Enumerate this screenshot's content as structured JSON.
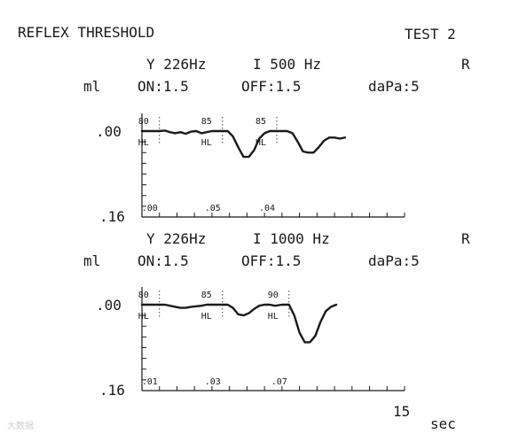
{
  "header": {
    "title": "REFLEX THRESHOLD",
    "test": "TEST 2"
  },
  "time_axis": {
    "max_label": "15",
    "unit": "sec"
  },
  "watermark": "大数据",
  "chart_data": [
    {
      "type": "line",
      "probe_label": "Y 226Hz",
      "stim_label": "I 500 Hz",
      "ear": "R",
      "ylabel": "ml",
      "on_label": "ON:1.5",
      "off_label": "OFF:1.5",
      "pressure_label": "daPa:5",
      "ytick_labels": [
        ".00",
        ".16"
      ],
      "ylim": [
        0.16,
        0.0
      ],
      "xlim": [
        0,
        15
      ],
      "stimuli": [
        {
          "level": "80",
          "unit": "HL",
          "at": 1.0,
          "amplitude": ".00"
        },
        {
          "level": "85",
          "unit": "HL",
          "at": 4.6,
          "amplitude": ".05"
        },
        {
          "level": "85",
          "unit": "HL",
          "at": 7.7,
          "amplitude": ".04"
        }
      ],
      "x": [
        0,
        1.0,
        1.3,
        1.6,
        1.9,
        2.2,
        2.5,
        2.8,
        3.1,
        3.4,
        3.7,
        4.0,
        4.3,
        4.6,
        4.9,
        5.2,
        5.5,
        5.8,
        6.1,
        6.4,
        6.7,
        7.0,
        7.3,
        7.7,
        8.0,
        8.3,
        8.6,
        8.9,
        9.2,
        9.5,
        9.8,
        10.1,
        10.4,
        10.7,
        11.0,
        11.3,
        11.6
      ],
      "y": [
        0.0,
        0.0,
        -0.001,
        0.002,
        0.004,
        0.002,
        0.005,
        0.001,
        0.0,
        0.004,
        0.002,
        0.0,
        0.0,
        0.0,
        0.0,
        0.01,
        0.03,
        0.048,
        0.048,
        0.036,
        0.014,
        0.004,
        0.0,
        0.0,
        0.0,
        0.0,
        0.004,
        0.02,
        0.038,
        0.04,
        0.04,
        0.03,
        0.018,
        0.012,
        0.012,
        0.014,
        0.012
      ]
    },
    {
      "type": "line",
      "probe_label": "Y 226Hz",
      "stim_label": "I 1000 Hz",
      "ear": "R",
      "ylabel": "ml",
      "on_label": "ON:1.5",
      "off_label": "OFF:1.5",
      "pressure_label": "daPa:5",
      "ytick_labels": [
        ".00",
        ".16"
      ],
      "ylim": [
        0.16,
        0.0
      ],
      "xlim": [
        0,
        15
      ],
      "stimuli": [
        {
          "level": "80",
          "unit": "HL",
          "at": 1.0,
          "amplitude": ".01"
        },
        {
          "level": "85",
          "unit": "HL",
          "at": 4.6,
          "amplitude": ".03"
        },
        {
          "level": "90",
          "unit": "HL",
          "at": 8.4,
          "amplitude": ".07"
        }
      ],
      "x": [
        0,
        1.0,
        1.3,
        1.6,
        1.9,
        2.2,
        2.5,
        2.8,
        3.1,
        3.4,
        3.7,
        4.0,
        4.3,
        4.6,
        4.9,
        5.2,
        5.5,
        5.8,
        6.1,
        6.4,
        6.7,
        7.0,
        7.3,
        7.6,
        8.0,
        8.4,
        8.7,
        9.0,
        9.3,
        9.6,
        9.9,
        10.2,
        10.5,
        10.8,
        11.1
      ],
      "y": [
        0.0,
        0.0,
        0.0,
        0.002,
        0.004,
        0.006,
        0.006,
        0.004,
        0.003,
        0.002,
        0.0,
        0.0,
        0.0,
        0.0,
        0.0,
        0.006,
        0.018,
        0.02,
        0.016,
        0.008,
        0.002,
        0.0,
        0.0,
        0.002,
        0.0,
        0.0,
        0.02,
        0.052,
        0.07,
        0.07,
        0.058,
        0.032,
        0.012,
        0.004,
        0.0
      ]
    }
  ]
}
